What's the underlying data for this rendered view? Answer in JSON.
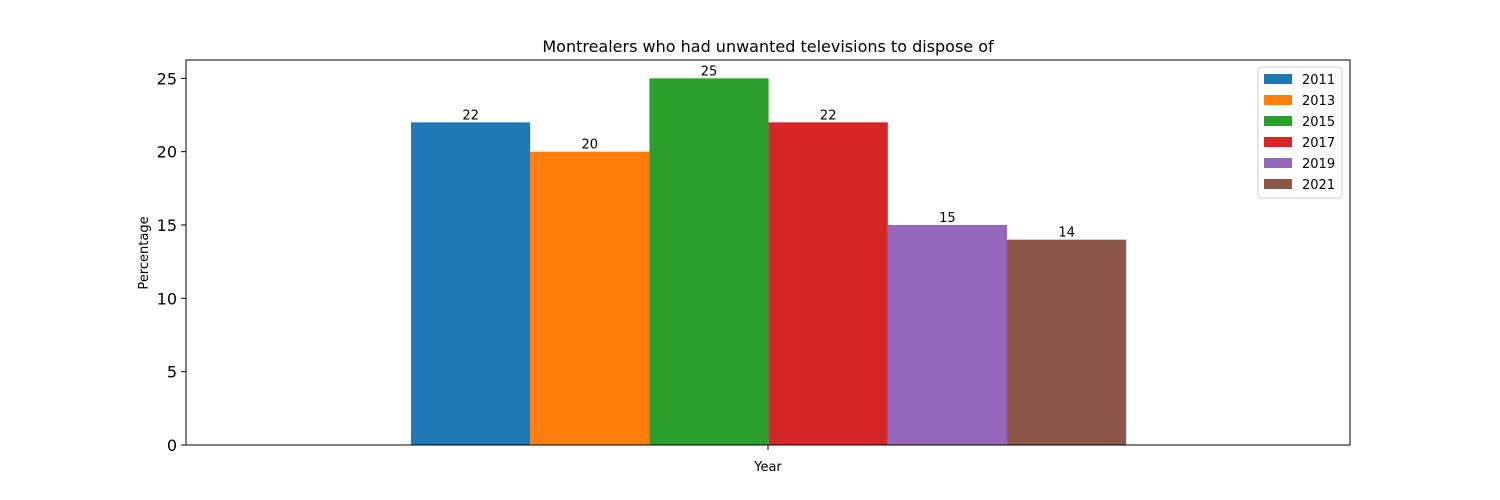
{
  "chart_data": {
    "type": "bar",
    "title": "Montrealers who had unwanted televisions to dispose of",
    "xlabel": "Year",
    "ylabel": "Percentage",
    "ylim": [
      0,
      26.25
    ],
    "yticks": [
      0,
      5,
      10,
      15,
      20,
      25
    ],
    "grid": false,
    "legend_position": "top-right",
    "series": [
      {
        "name": "2011",
        "value": 22,
        "color": "#1f77b4"
      },
      {
        "name": "2013",
        "value": 20,
        "color": "#ff7f0e"
      },
      {
        "name": "2015",
        "value": 25,
        "color": "#2ca02c"
      },
      {
        "name": "2017",
        "value": 22,
        "color": "#d62728"
      },
      {
        "name": "2019",
        "value": 15,
        "color": "#9467bd"
      },
      {
        "name": "2021",
        "value": 14,
        "color": "#8c564b"
      }
    ]
  }
}
